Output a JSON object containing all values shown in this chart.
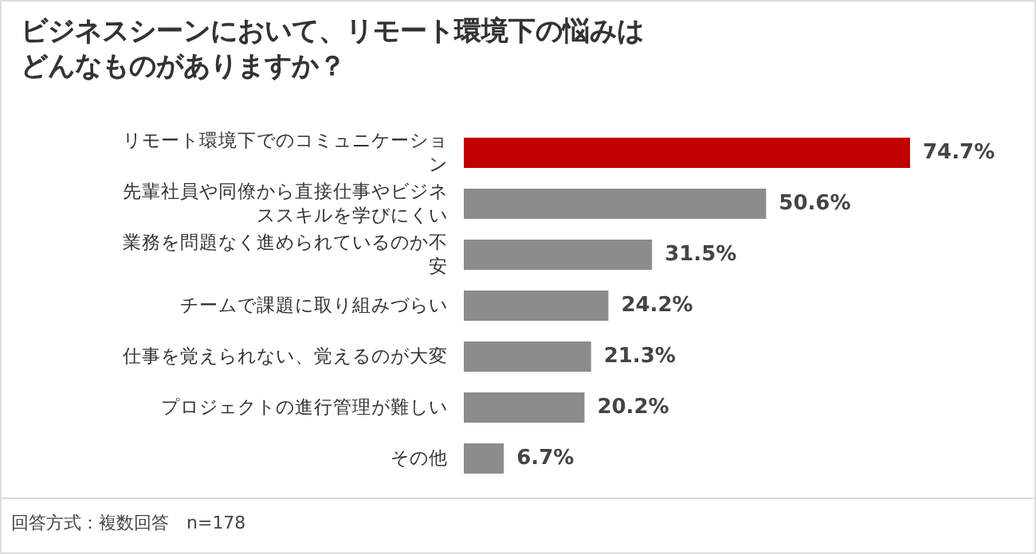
{
  "chart_data": {
    "type": "bar",
    "orientation": "horizontal",
    "title": "ビジネスシーンにおいて、リモート環境下の悩みはどんなものがありますか？",
    "categories": [
      "リモート環境下でのコミュニケーション",
      "先輩社員や同僚から直接仕事やビジネススキルを学びにくい",
      "業務を問題なく進められているのか不安",
      "チームで課題に取り組みづらい",
      "仕事を覚えられない、覚えるのが大変",
      "プロジェクトの進行管理が難しい",
      "その他"
    ],
    "values": [
      74.7,
      50.6,
      31.5,
      24.2,
      21.3,
      20.2,
      6.7
    ],
    "colors": [
      "#c00000",
      "#8c8c8c",
      "#8c8c8c",
      "#8c8c8c",
      "#8c8c8c",
      "#8c8c8c",
      "#8c8c8c"
    ],
    "value_labels": [
      "74.7%",
      "50.6%",
      "31.5%",
      "24.2%",
      "21.3%",
      "20.2%",
      "6.7%"
    ],
    "annotations": [
      "回答方式：複数回答　n=178"
    ]
  }
}
